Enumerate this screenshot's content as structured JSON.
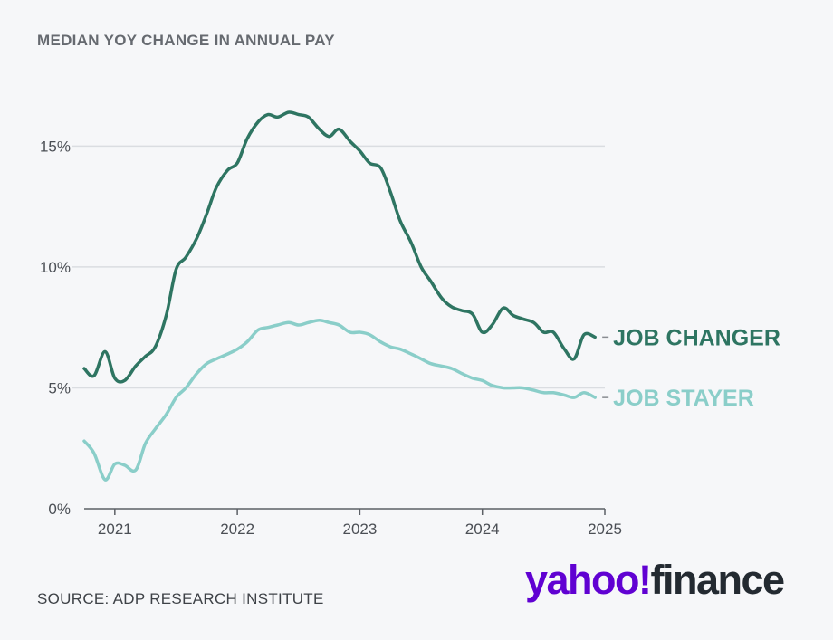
{
  "title": "MEDIAN YOY CHANGE IN ANNUAL PAY",
  "source": "SOURCE: ADP RESEARCH INSTITUTE",
  "logo": {
    "yahoo": "yahoo!",
    "finance": "finance"
  },
  "colors": {
    "job_changer": "#2e7562",
    "job_stayer": "#8acec9",
    "grid": "#dadde1",
    "axis": "#5c6066"
  },
  "chart_data": {
    "type": "line",
    "title": "MEDIAN YOY CHANGE IN ANNUAL PAY",
    "xlabel": "",
    "ylabel": "",
    "xlim": [
      2020.75,
      2025.0
    ],
    "ylim": [
      0,
      15.8
    ],
    "x_ticks": [
      2021,
      2022,
      2023,
      2024,
      2025
    ],
    "x_tick_labels": [
      "2021",
      "2022",
      "2023",
      "2024",
      "2025"
    ],
    "y_ticks": [
      0,
      5,
      10,
      15
    ],
    "y_tick_labels": [
      "0%",
      "5%",
      "10%",
      "15%"
    ],
    "grid": "horizontal",
    "legend": "direct labels at right end of lines",
    "series": [
      {
        "name": "JOB CHANGER",
        "color": "#2e7562",
        "x": [
          2020.75,
          2020.83,
          2020.92,
          2021.0,
          2021.08,
          2021.17,
          2021.25,
          2021.33,
          2021.42,
          2021.5,
          2021.58,
          2021.67,
          2021.75,
          2021.83,
          2021.92,
          2022.0,
          2022.08,
          2022.17,
          2022.25,
          2022.33,
          2022.42,
          2022.5,
          2022.58,
          2022.67,
          2022.75,
          2022.83,
          2022.92,
          2023.0,
          2023.08,
          2023.17,
          2023.25,
          2023.33,
          2023.42,
          2023.5,
          2023.58,
          2023.67,
          2023.75,
          2023.83,
          2023.92,
          2024.0,
          2024.08,
          2024.17,
          2024.25,
          2024.33,
          2024.42,
          2024.5,
          2024.58,
          2024.67,
          2024.75,
          2024.83,
          2024.92
        ],
        "values": [
          5.8,
          5.5,
          6.5,
          5.4,
          5.3,
          5.9,
          6.3,
          6.7,
          8.0,
          9.9,
          10.4,
          11.2,
          12.2,
          13.3,
          14.0,
          14.3,
          15.3,
          16.0,
          16.3,
          16.2,
          16.4,
          16.3,
          16.2,
          15.7,
          15.4,
          15.7,
          15.2,
          14.8,
          14.3,
          14.1,
          13.1,
          11.9,
          11.0,
          10.0,
          9.4,
          8.7,
          8.35,
          8.2,
          8.05,
          7.3,
          7.6,
          8.3,
          8.0,
          7.85,
          7.7,
          7.3,
          7.3,
          6.6,
          6.2,
          7.2,
          7.1
        ]
      },
      {
        "name": "JOB STAYER",
        "color": "#8acec9",
        "x": [
          2020.75,
          2020.83,
          2020.92,
          2021.0,
          2021.08,
          2021.17,
          2021.25,
          2021.33,
          2021.42,
          2021.5,
          2021.58,
          2021.67,
          2021.75,
          2021.83,
          2021.92,
          2022.0,
          2022.08,
          2022.17,
          2022.25,
          2022.33,
          2022.42,
          2022.5,
          2022.58,
          2022.67,
          2022.75,
          2022.83,
          2022.92,
          2023.0,
          2023.08,
          2023.17,
          2023.25,
          2023.33,
          2023.42,
          2023.5,
          2023.58,
          2023.67,
          2023.75,
          2023.83,
          2023.92,
          2024.0,
          2024.08,
          2024.17,
          2024.25,
          2024.33,
          2024.42,
          2024.5,
          2024.58,
          2024.67,
          2024.75,
          2024.83,
          2024.92
        ],
        "values": [
          2.8,
          2.3,
          1.2,
          1.85,
          1.8,
          1.6,
          2.7,
          3.3,
          3.9,
          4.6,
          5.0,
          5.6,
          6.0,
          6.2,
          6.4,
          6.6,
          6.9,
          7.4,
          7.5,
          7.6,
          7.7,
          7.6,
          7.7,
          7.8,
          7.7,
          7.6,
          7.3,
          7.3,
          7.2,
          6.9,
          6.7,
          6.6,
          6.4,
          6.2,
          6.0,
          5.9,
          5.8,
          5.6,
          5.4,
          5.3,
          5.1,
          5.0,
          5.0,
          5.0,
          4.9,
          4.8,
          4.8,
          4.7,
          4.6,
          4.8,
          4.6
        ]
      }
    ]
  }
}
